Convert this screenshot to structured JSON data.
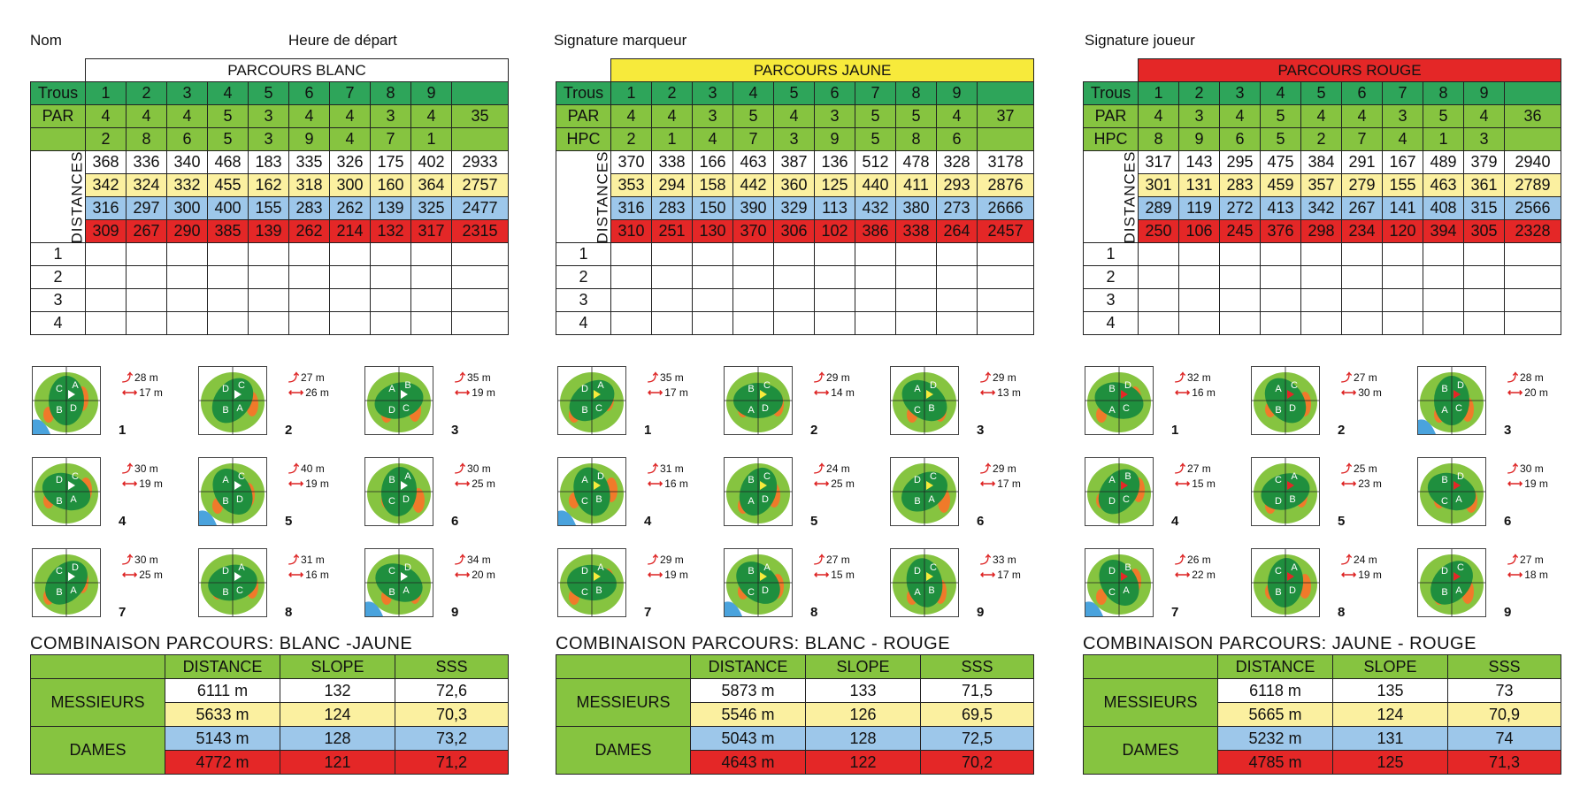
{
  "header": {
    "nom": "Nom",
    "heure": "Heure de départ",
    "signature_marqueur": "Signature marqueur",
    "signature_joueur": "Signature joueur"
  },
  "labels": {
    "trous": "Trous",
    "par": "PAR",
    "hpc": "HPC",
    "distances": "DISTANCES",
    "rows": [
      "1",
      "2",
      "3",
      "4"
    ]
  },
  "colors": {
    "dark_green": "#2ea55a",
    "light_green": "#86c440",
    "yellow": "#fbf0a0",
    "blue": "#9dc7ea",
    "red": "#e42727",
    "title_yellow": "#f7ea3b"
  },
  "courses": [
    {
      "title": "PARCOURS BLANC",
      "title_color": "#ffffff",
      "hpc_label": "",
      "holes": [
        "1",
        "2",
        "3",
        "4",
        "5",
        "6",
        "7",
        "8",
        "9"
      ],
      "par": [
        "4",
        "4",
        "4",
        "5",
        "3",
        "4",
        "4",
        "3",
        "4",
        "35"
      ],
      "hpc": [
        "2",
        "8",
        "6",
        "5",
        "3",
        "9",
        "4",
        "7",
        "1",
        ""
      ],
      "distances": [
        [
          "368",
          "336",
          "340",
          "468",
          "183",
          "335",
          "326",
          "175",
          "402",
          "2933"
        ],
        [
          "342",
          "324",
          "332",
          "455",
          "162",
          "318",
          "300",
          "160",
          "364",
          "2757"
        ],
        [
          "316",
          "297",
          "300",
          "400",
          "155",
          "283",
          "262",
          "139",
          "325",
          "2477"
        ],
        [
          "309",
          "267",
          "290",
          "385",
          "139",
          "262",
          "214",
          "132",
          "317",
          "2315"
        ]
      ],
      "greens": [
        {
          "n": "1",
          "d1": "28 m",
          "d2": "17 m",
          "flag": "#ffffff",
          "letters": [
            "C",
            "A",
            "B",
            "D"
          ]
        },
        {
          "n": "2",
          "d1": "27 m",
          "d2": "26 m",
          "flag": "#ffffff",
          "letters": [
            "D",
            "C",
            "B",
            "A"
          ]
        },
        {
          "n": "3",
          "d1": "35 m",
          "d2": "19 m",
          "flag": "#ffffff",
          "letters": [
            "A",
            "B",
            "D",
            "C"
          ]
        },
        {
          "n": "4",
          "d1": "30 m",
          "d2": "19 m",
          "flag": "#ffffff",
          "letters": [
            "D",
            "C",
            "B",
            "A"
          ]
        },
        {
          "n": "5",
          "d1": "40 m",
          "d2": "19 m",
          "flag": "#ffffff",
          "letters": [
            "A",
            "C",
            "B",
            "D"
          ]
        },
        {
          "n": "6",
          "d1": "30 m",
          "d2": "25 m",
          "flag": "#ffffff",
          "letters": [
            "B",
            "A",
            "C",
            "D"
          ]
        },
        {
          "n": "7",
          "d1": "30 m",
          "d2": "25 m",
          "flag": "#ffffff",
          "letters": [
            "C",
            "D",
            "B",
            "A"
          ]
        },
        {
          "n": "8",
          "d1": "31 m",
          "d2": "16 m",
          "flag": "#ffffff",
          "letters": [
            "D",
            "A",
            "B",
            "C"
          ]
        },
        {
          "n": "9",
          "d1": "34 m",
          "d2": "20 m",
          "flag": "#ffffff",
          "letters": [
            "C",
            "D",
            "B",
            "A"
          ]
        }
      ],
      "combo": {
        "title": "COMBINAISON PARCOURS: BLANC -JAUNE",
        "headers": [
          "DISTANCE",
          "SLOPE",
          "SSS"
        ],
        "messieurs": "MESSIEURS",
        "dames": "DAMES",
        "rows": [
          [
            "6111 m",
            "132",
            "72,6"
          ],
          [
            "5633 m",
            "124",
            "70,3"
          ],
          [
            "5143 m",
            "128",
            "73,2"
          ],
          [
            "4772 m",
            "121",
            "71,2"
          ]
        ]
      }
    },
    {
      "title": "PARCOURS JAUNE",
      "title_color": "#f7ea3b",
      "hpc_label": "HPC",
      "holes": [
        "1",
        "2",
        "3",
        "4",
        "5",
        "6",
        "7",
        "8",
        "9"
      ],
      "par": [
        "4",
        "4",
        "3",
        "5",
        "4",
        "3",
        "5",
        "5",
        "4",
        "37"
      ],
      "hpc": [
        "2",
        "1",
        "4",
        "7",
        "3",
        "9",
        "5",
        "8",
        "6",
        ""
      ],
      "distances": [
        [
          "370",
          "338",
          "166",
          "463",
          "387",
          "136",
          "512",
          "478",
          "328",
          "3178"
        ],
        [
          "353",
          "294",
          "158",
          "442",
          "360",
          "125",
          "440",
          "411",
          "293",
          "2876"
        ],
        [
          "316",
          "283",
          "150",
          "390",
          "329",
          "113",
          "432",
          "380",
          "273",
          "2666"
        ],
        [
          "310",
          "251",
          "130",
          "370",
          "306",
          "102",
          "386",
          "338",
          "264",
          "2457"
        ]
      ],
      "greens": [
        {
          "n": "1",
          "d1": "35 m",
          "d2": "17 m",
          "flag": "#f7ea3b",
          "letters": [
            "D",
            "A",
            "B",
            "C"
          ]
        },
        {
          "n": "2",
          "d1": "29 m",
          "d2": "14 m",
          "flag": "#f7ea3b",
          "letters": [
            "B",
            "C",
            "A",
            "D"
          ]
        },
        {
          "n": "3",
          "d1": "29 m",
          "d2": "13 m",
          "flag": "#f7ea3b",
          "letters": [
            "A",
            "D",
            "C",
            "B"
          ]
        },
        {
          "n": "4",
          "d1": "31 m",
          "d2": "16 m",
          "flag": "#f7ea3b",
          "letters": [
            "A",
            "D",
            "C",
            "B"
          ]
        },
        {
          "n": "5",
          "d1": "24 m",
          "d2": "25 m",
          "flag": "#f7ea3b",
          "letters": [
            "B",
            "C",
            "A",
            "D"
          ]
        },
        {
          "n": "6",
          "d1": "29 m",
          "d2": "17 m",
          "flag": "#f7ea3b",
          "letters": [
            "D",
            "C",
            "B",
            "A"
          ]
        },
        {
          "n": "7",
          "d1": "29 m",
          "d2": "19 m",
          "flag": "#f7ea3b",
          "letters": [
            "D",
            "A",
            "C",
            "B"
          ]
        },
        {
          "n": "8",
          "d1": "27 m",
          "d2": "15 m",
          "flag": "#f7ea3b",
          "letters": [
            "B",
            "A",
            "C",
            "D"
          ]
        },
        {
          "n": "9",
          "d1": "33 m",
          "d2": "17 m",
          "flag": "#f7ea3b",
          "letters": [
            "D",
            "C",
            "A",
            "B"
          ]
        }
      ],
      "combo": {
        "title": "COMBINAISON PARCOURS: BLANC - ROUGE",
        "headers": [
          "DISTANCE",
          "SLOPE",
          "SSS"
        ],
        "messieurs": "MESSIEURS",
        "dames": "DAMES",
        "rows": [
          [
            "5873 m",
            "133",
            "71,5"
          ],
          [
            "5546 m",
            "126",
            "69,5"
          ],
          [
            "5043 m",
            "128",
            "72,5"
          ],
          [
            "4643 m",
            "122",
            "70,2"
          ]
        ]
      }
    },
    {
      "title": "PARCOURS ROUGE",
      "title_color": "#e42727",
      "hpc_label": "HPC",
      "holes": [
        "1",
        "2",
        "3",
        "4",
        "5",
        "6",
        "7",
        "8",
        "9"
      ],
      "par": [
        "4",
        "3",
        "4",
        "5",
        "4",
        "4",
        "3",
        "5",
        "4",
        "36"
      ],
      "hpc": [
        "8",
        "9",
        "6",
        "5",
        "2",
        "7",
        "4",
        "1",
        "3",
        ""
      ],
      "distances": [
        [
          "317",
          "143",
          "295",
          "475",
          "384",
          "291",
          "167",
          "489",
          "379",
          "2940"
        ],
        [
          "301",
          "131",
          "283",
          "459",
          "357",
          "279",
          "155",
          "463",
          "361",
          "2789"
        ],
        [
          "289",
          "119",
          "272",
          "413",
          "342",
          "267",
          "141",
          "408",
          "315",
          "2566"
        ],
        [
          "250",
          "106",
          "245",
          "376",
          "298",
          "234",
          "120",
          "394",
          "305",
          "2328"
        ]
      ],
      "greens": [
        {
          "n": "1",
          "d1": "32 m",
          "d2": "16 m",
          "flag": "#e42727",
          "letters": [
            "B",
            "D",
            "A",
            "C"
          ]
        },
        {
          "n": "2",
          "d1": "27 m",
          "d2": "30 m",
          "flag": "#e42727",
          "letters": [
            "A",
            "C",
            "B",
            "D"
          ]
        },
        {
          "n": "3",
          "d1": "28 m",
          "d2": "20 m",
          "flag": "#e42727",
          "letters": [
            "B",
            "D",
            "A",
            "C"
          ]
        },
        {
          "n": "4",
          "d1": "27 m",
          "d2": "15 m",
          "flag": "#e42727",
          "letters": [
            "A",
            "B",
            "D",
            "C"
          ]
        },
        {
          "n": "5",
          "d1": "25 m",
          "d2": "23 m",
          "flag": "#e42727",
          "letters": [
            "C",
            "A",
            "D",
            "B"
          ]
        },
        {
          "n": "6",
          "d1": "30 m",
          "d2": "19 m",
          "flag": "#e42727",
          "letters": [
            "B",
            "D",
            "C",
            "A"
          ]
        },
        {
          "n": "7",
          "d1": "26 m",
          "d2": "22 m",
          "flag": "#e42727",
          "letters": [
            "D",
            "B",
            "C",
            "A"
          ]
        },
        {
          "n": "8",
          "d1": "24 m",
          "d2": "19 m",
          "flag": "#e42727",
          "letters": [
            "C",
            "A",
            "B",
            "D"
          ]
        },
        {
          "n": "9",
          "d1": "27 m",
          "d2": "18 m",
          "flag": "#e42727",
          "letters": [
            "D",
            "C",
            "B",
            "A"
          ]
        }
      ],
      "combo": {
        "title": "COMBINAISON PARCOURS: JAUNE - ROUGE",
        "headers": [
          "DISTANCE",
          "SLOPE",
          "SSS"
        ],
        "messieurs": "MESSIEURS",
        "dames": "DAMES",
        "rows": [
          [
            "6118 m",
            "135",
            "73"
          ],
          [
            "5665 m",
            "124",
            "70,9"
          ],
          [
            "5232 m",
            "131",
            "74"
          ],
          [
            "4785 m",
            "125",
            "71,3"
          ]
        ]
      }
    }
  ]
}
